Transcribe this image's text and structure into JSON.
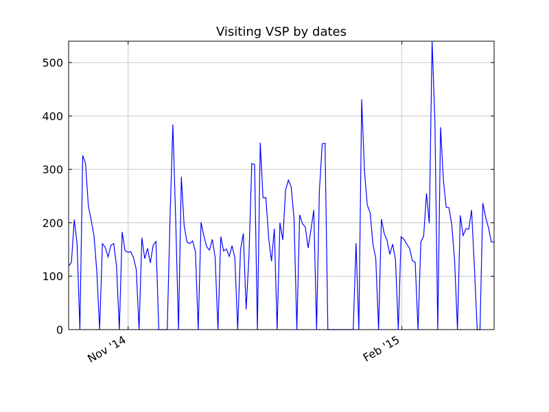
{
  "chart_data": {
    "type": "line",
    "title": "Visiting VSP by dates",
    "xlabel": "",
    "ylabel": "",
    "x_start": "2014-10-12",
    "x_end": "2015-03-04",
    "ylim": [
      0,
      540
    ],
    "yticks": [
      0,
      100,
      200,
      300,
      400,
      500
    ],
    "xticks": [
      {
        "date": "2014-11-01",
        "label": "Nov '14"
      },
      {
        "date": "2015-02-01",
        "label": "Feb '15"
      }
    ],
    "grid": true,
    "line_color": "#0000ff",
    "series": [
      {
        "values": [
          119,
          126,
          206,
          160,
          0,
          326,
          311,
          232,
          205,
          176,
          109,
          0,
          161,
          154,
          136,
          158,
          161,
          119,
          0,
          183,
          148,
          145,
          146,
          135,
          113,
          0,
          172,
          133,
          152,
          125,
          158,
          165,
          0,
          0,
          0,
          0,
          210,
          384,
          205,
          0,
          286,
          195,
          164,
          161,
          166,
          146,
          0,
          201,
          175,
          155,
          149,
          169,
          135,
          0,
          174,
          147,
          151,
          137,
          157,
          134,
          0,
          149,
          180,
          38,
          137,
          311,
          309,
          0,
          350,
          247,
          247,
          171,
          128,
          189,
          0,
          200,
          168,
          261,
          280,
          267,
          207,
          0,
          215,
          198,
          192,
          153,
          187,
          224,
          0,
          260,
          348,
          349,
          0,
          0,
          0,
          0,
          0,
          0,
          0,
          0,
          0,
          0,
          162,
          0,
          431,
          296,
          233,
          219,
          160,
          134,
          0,
          207,
          180,
          167,
          141,
          160,
          131,
          0,
          174,
          169,
          160,
          152,
          129,
          126,
          0,
          164,
          175,
          255,
          199,
          540,
          390,
          0,
          379,
          280,
          229,
          228,
          195,
          128,
          0,
          214,
          176,
          189,
          188,
          224,
          118,
          0,
          0,
          237,
          210,
          191,
          164,
          164
        ]
      }
    ]
  }
}
